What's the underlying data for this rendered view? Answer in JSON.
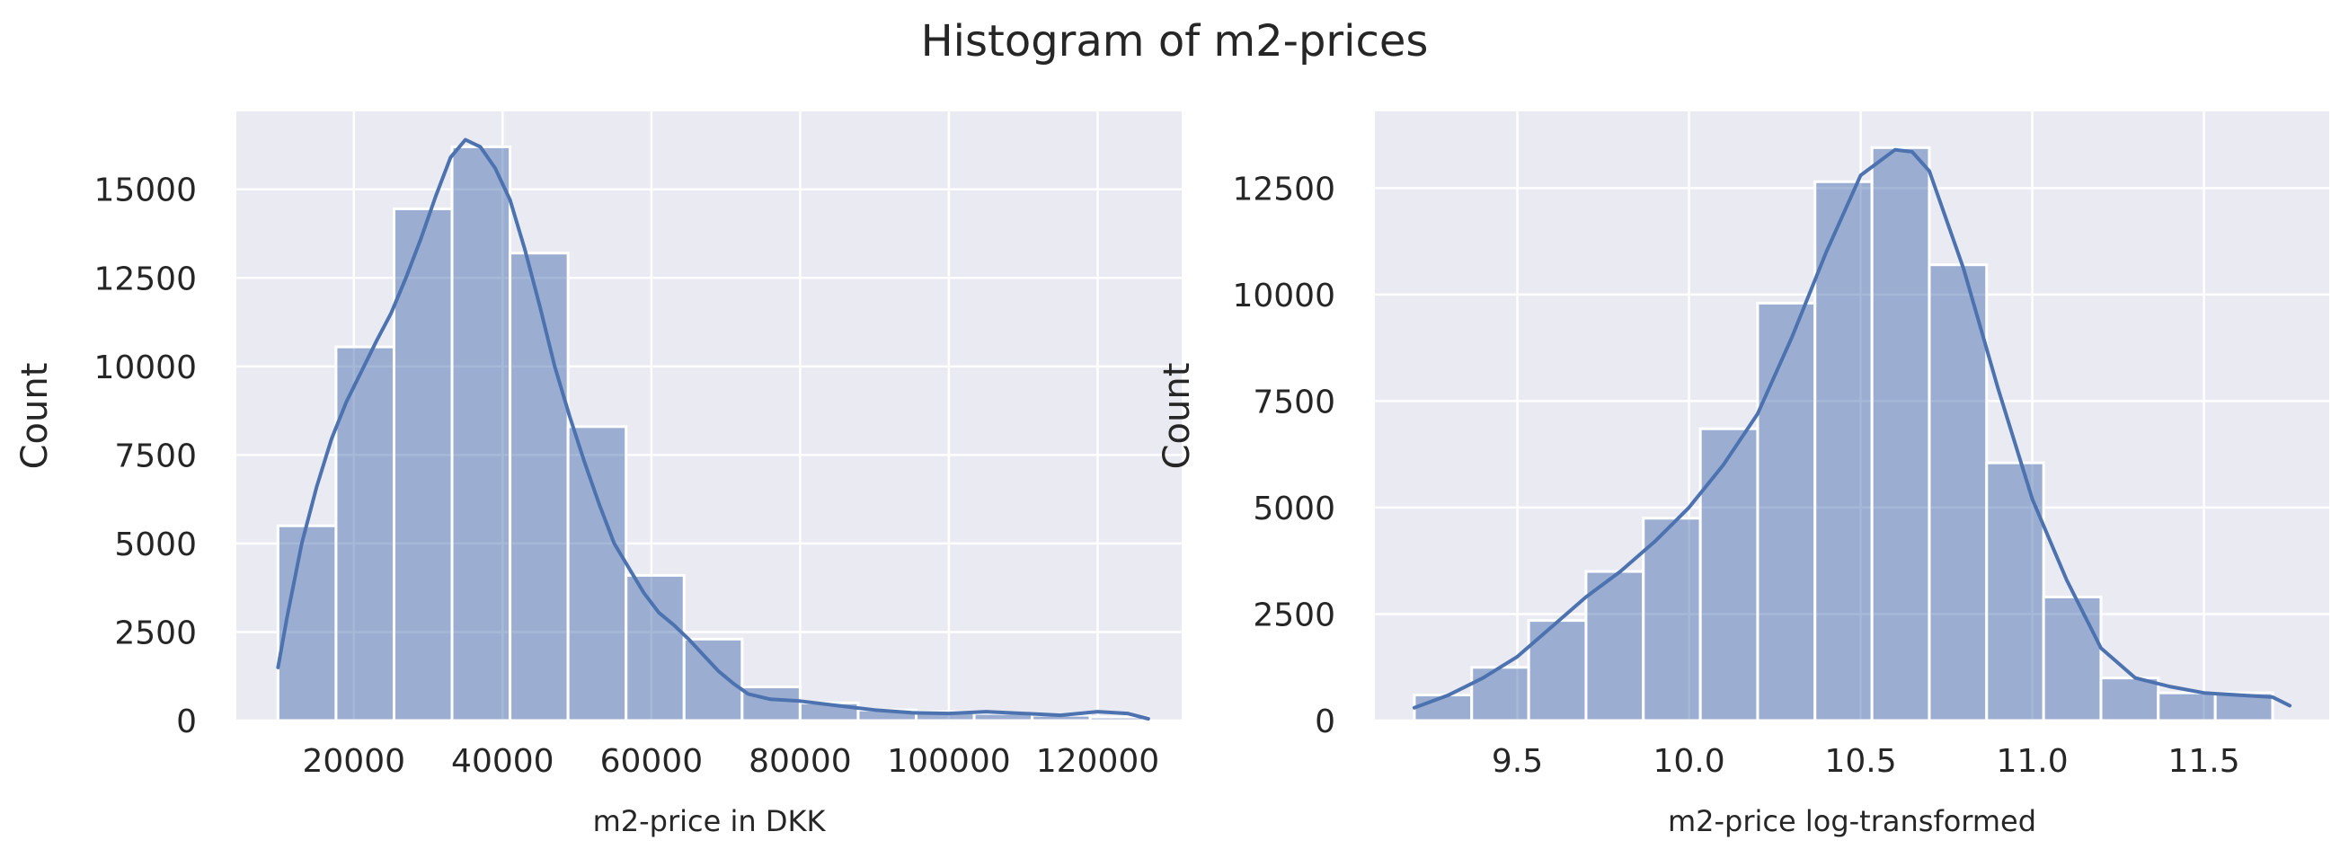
{
  "figure": {
    "title": "Histogram of m2-prices"
  },
  "colors": {
    "bar": "#4c72b0",
    "bar_alpha": 0.5,
    "kde": "#4c72b0",
    "axes_bg": "#eaeaf2",
    "grid": "#ffffff"
  },
  "chart_data": [
    {
      "type": "histogram",
      "title": "",
      "xlabel": "m2-price in DKK",
      "ylabel": "Count",
      "xlim": [
        4200,
        131300
      ],
      "ylim": [
        0,
        17200
      ],
      "xticks": [
        20000,
        40000,
        60000,
        80000,
        100000,
        120000
      ],
      "yticks": [
        0,
        2500,
        5000,
        7500,
        10000,
        12500,
        15000
      ],
      "bin_edges": [
        9800,
        17600,
        25400,
        33200,
        41000,
        48800,
        56600,
        64400,
        72200,
        80000,
        87800,
        95600,
        103400,
        111200,
        119000,
        126800
      ],
      "counts": [
        5500,
        10550,
        14450,
        16200,
        13200,
        8300,
        4100,
        2300,
        950,
        500,
        300,
        250,
        200,
        150,
        100
      ],
      "kde": {
        "x": [
          9800,
          11000,
          13000,
          15000,
          17000,
          19000,
          21000,
          23000,
          25000,
          27000,
          29000,
          31000,
          33000,
          35000,
          37000,
          39000,
          41000,
          43000,
          45000,
          47000,
          49000,
          51000,
          53000,
          55000,
          57000,
          59000,
          61000,
          63000,
          65000,
          67000,
          69000,
          71000,
          73000,
          76000,
          80000,
          85000,
          90000,
          95000,
          100000,
          105000,
          110000,
          115000,
          120000,
          124000,
          126800
        ],
        "y": [
          1500,
          2900,
          5000,
          6600,
          7950,
          9000,
          9850,
          10700,
          11500,
          12500,
          13600,
          14800,
          15900,
          16400,
          16200,
          15600,
          14700,
          13300,
          11700,
          10000,
          8600,
          7300,
          6100,
          5000,
          4300,
          3600,
          3050,
          2700,
          2300,
          1850,
          1400,
          1050,
          750,
          600,
          550,
          420,
          300,
          220,
          200,
          250,
          200,
          150,
          250,
          200,
          50
        ]
      }
    },
    {
      "type": "histogram",
      "title": "",
      "xlabel": "m2-price log-transformed",
      "ylabel": "Count",
      "xlim": [
        9.085,
        11.865
      ],
      "ylim": [
        0,
        14300
      ],
      "xticks": [
        9.5,
        10.0,
        10.5,
        11.0,
        11.5
      ],
      "yticks": [
        0,
        2500,
        5000,
        7500,
        10000,
        12500
      ],
      "tick_labels": [
        "9.5",
        "10.0",
        "10.5",
        "11.0",
        "11.5"
      ],
      "bin_edges": [
        9.2,
        9.367,
        9.533,
        9.7,
        9.867,
        10.033,
        10.2,
        10.367,
        10.533,
        10.7,
        10.867,
        11.033,
        11.2,
        11.367,
        11.533,
        11.7
      ],
      "counts": [
        600,
        1250,
        2350,
        3500,
        4750,
        6850,
        9800,
        12650,
        13450,
        10700,
        6050,
        2900,
        1000,
        650,
        650
      ],
      "kde": {
        "x": [
          9.2,
          9.3,
          9.4,
          9.5,
          9.6,
          9.7,
          9.8,
          9.9,
          10.0,
          10.1,
          10.2,
          10.3,
          10.4,
          10.5,
          10.6,
          10.65,
          10.7,
          10.8,
          10.9,
          11.0,
          11.1,
          11.2,
          11.3,
          11.4,
          11.5,
          11.6,
          11.7,
          11.75
        ],
        "y": [
          300,
          600,
          1000,
          1500,
          2200,
          2900,
          3500,
          4200,
          5000,
          6000,
          7200,
          9000,
          11000,
          12800,
          13400,
          13350,
          12900,
          10600,
          7800,
          5200,
          3300,
          1700,
          1000,
          800,
          650,
          600,
          550,
          350
        ]
      }
    }
  ]
}
